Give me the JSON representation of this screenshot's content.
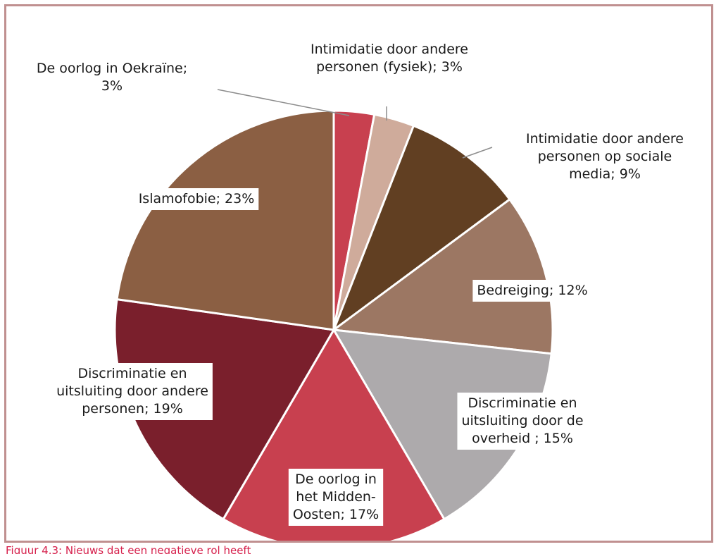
{
  "caption": "Figuur 4.3: Nieuws dat een negatieve rol heeft",
  "chart_data": {
    "type": "pie",
    "title": "",
    "start_angle_deg": -90,
    "direction": "clockwise",
    "slices": [
      {
        "label_lines": [
          "De oorlog in Oekraïne;",
          "3%"
        ],
        "value": 3,
        "color": "#c8404f"
      },
      {
        "label_lines": [
          "Intimidatie door andere",
          "personen (fysiek); 3%"
        ],
        "value": 3,
        "color": "#cfab9b"
      },
      {
        "label_lines": [
          "Intimidatie door andere",
          "personen op sociale",
          "media; 9%"
        ],
        "value": 9,
        "color": "#613f22"
      },
      {
        "label_lines": [
          "Bedreiging; 12%"
        ],
        "value": 12,
        "color": "#9c7763"
      },
      {
        "label_lines": [
          "Discriminatie en",
          "uitsluiting door de",
          "overheid ; 15%"
        ],
        "value": 15,
        "color": "#adaaac"
      },
      {
        "label_lines": [
          "De oorlog in",
          "het Midden-",
          "Oosten; 17%"
        ],
        "value": 17,
        "color": "#c8404f"
      },
      {
        "label_lines": [
          "Discriminatie en",
          "uitsluiting door andere",
          "personen; 19%"
        ],
        "value": 19,
        "color": "#7a1f2c"
      },
      {
        "label_lines": [
          "Islamofobie; 23%"
        ],
        "value": 23,
        "color": "#8b5f43"
      }
    ]
  }
}
